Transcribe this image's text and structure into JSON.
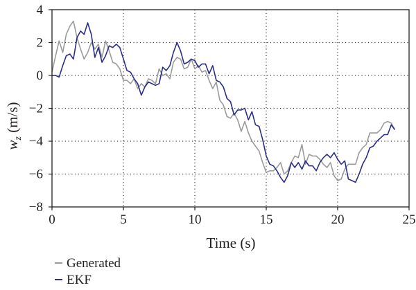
{
  "chart_data": {
    "type": "line",
    "title": "",
    "xlabel": "Time (s)",
    "ylabel": {
      "symbol": "w",
      "subscript": "z",
      "unit": " (m/s)"
    },
    "xlim": [
      0,
      25
    ],
    "ylim": [
      -8,
      4
    ],
    "xticks": [
      0,
      5,
      10,
      15,
      20,
      25
    ],
    "yticks": [
      -8,
      -6,
      -4,
      -2,
      0,
      2,
      4
    ],
    "grid": "dotted, both axes",
    "legend_position": "bottom-left, below plot",
    "series": [
      {
        "name": "Generated",
        "color": "#9b9b9b",
        "x": [
          0,
          0.25,
          0.5,
          0.75,
          1,
          1.25,
          1.5,
          1.6,
          1.75,
          2,
          2.25,
          2.5,
          2.75,
          3,
          3.25,
          3.5,
          3.75,
          4,
          4.25,
          4.5,
          4.75,
          5,
          5.25,
          5.5,
          5.75,
          6,
          6.25,
          6.5,
          6.75,
          7,
          7.25,
          7.5,
          7.75,
          8,
          8.25,
          8.5,
          8.75,
          9,
          9.25,
          9.5,
          9.75,
          10,
          10.25,
          10.5,
          10.75,
          11,
          11.25,
          11.5,
          11.75,
          12,
          12.25,
          12.5,
          12.75,
          13,
          13.25,
          13.5,
          13.75,
          14,
          14.25,
          14.5,
          14.75,
          15,
          15.25,
          15.5,
          15.75,
          16,
          16.25,
          16.5,
          16.75,
          17,
          17.25,
          17.5,
          17.75,
          18,
          18.25,
          18.5,
          18.75,
          19,
          19.25,
          19.5,
          19.75,
          20,
          20.25,
          20.5,
          20.75,
          21,
          21.25,
          21.5,
          21.75,
          22,
          22.25,
          22.5,
          22.75,
          23,
          23.25,
          23.5,
          23.75,
          24
        ],
        "values": [
          0.2,
          1.2,
          2.1,
          1.4,
          2.5,
          3.0,
          3.3,
          2.9,
          2.3,
          1.6,
          1.0,
          1.4,
          2.0,
          1.6,
          1.9,
          1.1,
          2.1,
          1.5,
          0.8,
          0.7,
          0.4,
          -0.3,
          -0.3,
          -0.5,
          -0.2,
          -0.8,
          -0.5,
          -0.7,
          -0.2,
          -0.3,
          -0.5,
          0.4,
          0.0,
          0.1,
          -0.2,
          0.8,
          1.1,
          1.0,
          0.4,
          0.5,
          1.0,
          0.4,
          0.6,
          0.2,
          0.3,
          -0.3,
          -0.8,
          -0.4,
          -1.5,
          -1.8,
          -2.5,
          -2.6,
          -2.3,
          -2.7,
          -3.4,
          -2.8,
          -3.5,
          -4.0,
          -4.3,
          -4.6,
          -5.3,
          -5.9,
          -5.8,
          -5.8,
          -5.6,
          -5.3,
          -6.0,
          -5.8,
          -5.3,
          -4.9,
          -5.0,
          -4.2,
          -5.4,
          -4.8,
          -4.9,
          -4.9,
          -5.1,
          -5.4,
          -5.6,
          -5.3,
          -6.1,
          -6.4,
          -6.3,
          -5.7,
          -5.4,
          -5.4,
          -5.4,
          -4.7,
          -4.4,
          -4.2,
          -3.5,
          -3.5,
          -3.5,
          -3.3,
          -2.9,
          -2.8,
          -2.9,
          -3.3
        ]
      },
      {
        "name": "EKF",
        "color": "#2b2e87",
        "x": [
          0,
          0.25,
          0.5,
          0.75,
          1,
          1.25,
          1.5,
          1.75,
          2,
          2.25,
          2.5,
          2.75,
          3,
          3.25,
          3.5,
          3.75,
          4,
          4.25,
          4.5,
          4.75,
          5,
          5.25,
          5.5,
          5.75,
          6,
          6.25,
          6.5,
          6.75,
          7,
          7.25,
          7.5,
          7.75,
          8,
          8.25,
          8.5,
          8.75,
          9,
          9.25,
          9.5,
          9.75,
          10,
          10.25,
          10.5,
          10.75,
          11,
          11.25,
          11.5,
          11.75,
          12,
          12.25,
          12.5,
          12.75,
          13,
          13.25,
          13.5,
          13.75,
          14,
          14.25,
          14.5,
          14.75,
          15,
          15.25,
          15.5,
          15.75,
          16,
          16.25,
          16.5,
          16.75,
          17,
          17.25,
          17.5,
          17.75,
          18,
          18.25,
          18.5,
          18.75,
          19,
          19.25,
          19.5,
          19.75,
          20,
          20.25,
          20.5,
          20.75,
          21,
          21.25,
          21.5,
          21.75,
          22,
          22.25,
          22.5,
          22.75,
          23,
          23.25,
          23.5,
          23.75,
          24
        ],
        "values": [
          0.0,
          0.0,
          -0.1,
          0.6,
          1.2,
          1.3,
          1.0,
          2.3,
          2.7,
          2.5,
          3.2,
          2.5,
          1.1,
          1.7,
          0.8,
          1.2,
          1.8,
          1.7,
          1.9,
          1.7,
          1.0,
          0.3,
          0.2,
          -0.2,
          -0.5,
          -1.2,
          -0.7,
          -0.4,
          -0.5,
          -0.6,
          -0.5,
          0.5,
          0.3,
          0.6,
          1.4,
          2.0,
          1.5,
          0.7,
          0.8,
          1.0,
          0.9,
          0.5,
          0.7,
          0.7,
          0.1,
          0.6,
          -0.3,
          -0.4,
          -0.7,
          -1.4,
          -1.6,
          -2.4,
          -2.1,
          -2.1,
          -2.0,
          -2.7,
          -2.2,
          -3.0,
          -3.1,
          -3.9,
          -4.9,
          -5.4,
          -5.5,
          -5.8,
          -6.2,
          -6.5,
          -6.1,
          -5.3,
          -5.6,
          -5.3,
          -5.7,
          -5.2,
          -5.5,
          -5.5,
          -5.8,
          -5.3,
          -5.0,
          -4.8,
          -5.0,
          -4.7,
          -5.1,
          -5.4,
          -5.2,
          -6.3,
          -6.4,
          -6.5,
          -6.0,
          -5.4,
          -5.0,
          -4.4,
          -4.3,
          -4.0,
          -3.8,
          -3.6,
          -3.6,
          -3.0,
          -3.3
        ]
      }
    ]
  }
}
